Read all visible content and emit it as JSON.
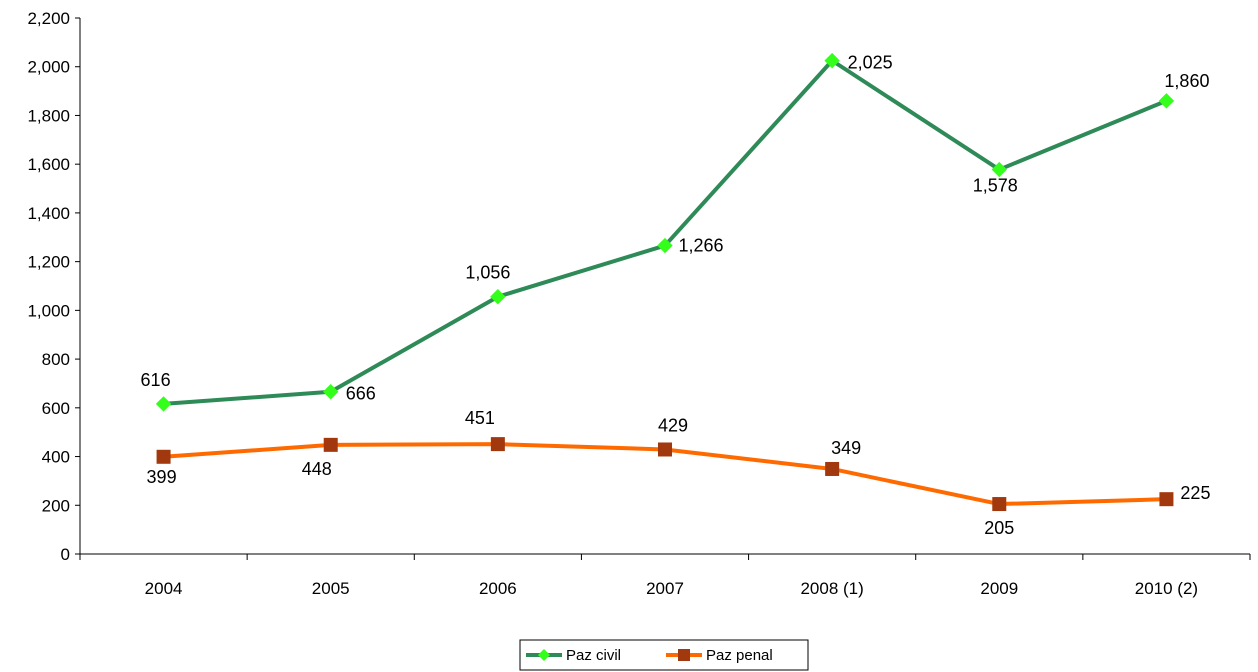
{
  "chart_data": {
    "type": "line",
    "categories": [
      "2004",
      "2005",
      "2006",
      "2007",
      "2008 (1)",
      "2009",
      "2010 (2)"
    ],
    "series": [
      {
        "name": "Paz civil",
        "values": [
          616,
          666,
          1056,
          1266,
          2025,
          1578,
          1860
        ],
        "labels": [
          "616",
          "666",
          "1,056",
          "1,266",
          "2,025",
          "1,578",
          "1,860"
        ],
        "line_color": "#2E8B57",
        "marker_color": "#33FF1A",
        "marker": "diamond"
      },
      {
        "name": "Paz penal",
        "values": [
          399,
          448,
          451,
          429,
          349,
          205,
          225
        ],
        "labels": [
          "399",
          "448",
          "451",
          "429",
          "349",
          "205",
          "225"
        ],
        "line_color": "#FF6A00",
        "marker_color": "#A2380E",
        "marker": "square"
      }
    ],
    "yticks": [
      "0",
      "200",
      "400",
      "600",
      "800",
      "1,000",
      "1,200",
      "1,400",
      "1,600",
      "1,800",
      "2,000",
      "2,200"
    ],
    "ylim": [
      0,
      2200
    ],
    "grid": false,
    "legend_position": "bottom"
  }
}
